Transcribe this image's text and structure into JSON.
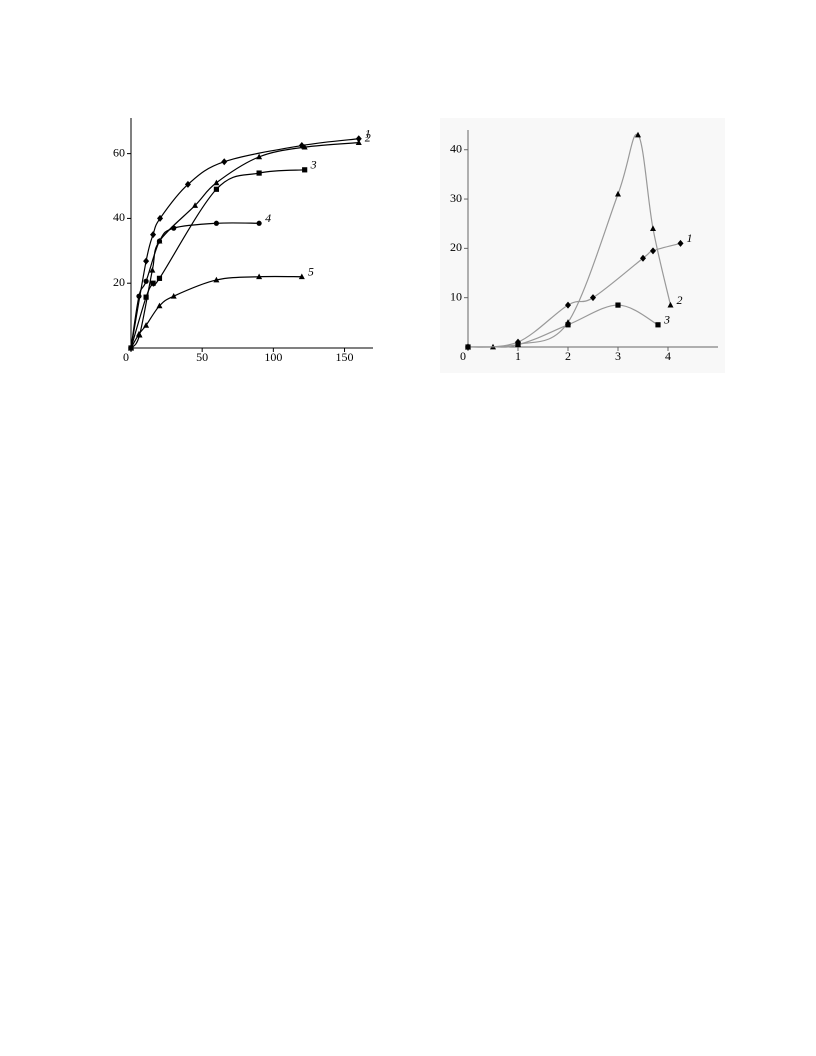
{
  "chart_data": [
    {
      "type": "line",
      "line_color": "#000000",
      "axis_color": "#000000",
      "xlim": [
        0,
        170
      ],
      "ylim": [
        0,
        71
      ],
      "xticks": [
        0,
        50,
        100,
        150
      ],
      "yticks": [
        20,
        40,
        60
      ],
      "series": [
        {
          "name": "1",
          "marker": "diamond",
          "color": "#000000",
          "x": [
            0,
            10.6,
            15.5,
            20.4,
            40,
            65.5,
            120,
            160
          ],
          "values": [
            0,
            26.8,
            35,
            40,
            50.5,
            57.5,
            62.5,
            64.6
          ]
        },
        {
          "name": "2",
          "marker": "triangle",
          "color": "#000000",
          "x": [
            0,
            6,
            15,
            20,
            45,
            60,
            90,
            122,
            160
          ],
          "values": [
            0,
            4,
            24,
            33,
            44,
            51,
            59,
            62,
            63.4
          ]
        },
        {
          "name": "3",
          "marker": "square",
          "color": "#000000",
          "x": [
            0,
            10.6,
            15.5,
            20,
            60,
            90,
            122
          ],
          "values": [
            0,
            15.7,
            20,
            21.5,
            49,
            54,
            55
          ]
        },
        {
          "name": "4",
          "marker": "circle",
          "color": "#000000",
          "x": [
            0,
            5.6,
            10.6,
            20,
            30,
            60,
            90
          ],
          "values": [
            0,
            16,
            20.6,
            33,
            37,
            38.5,
            38.5
          ]
        },
        {
          "name": "5",
          "marker": "triangle",
          "color": "#000000",
          "x": [
            0,
            5.6,
            10.6,
            20,
            30,
            60,
            90,
            120
          ],
          "values": [
            0,
            4.3,
            7,
            13,
            16,
            21,
            22,
            22
          ]
        }
      ]
    },
    {
      "type": "line",
      "line_color": "#999999",
      "axis_color": "#666666",
      "xlim": [
        0,
        5
      ],
      "ylim": [
        0,
        44
      ],
      "xticks": [
        0,
        1,
        2,
        3,
        4
      ],
      "yticks": [
        10,
        20,
        30,
        40
      ],
      "series": [
        {
          "name": "1",
          "marker": "diamond",
          "color": "#000000",
          "x": [
            0,
            1,
            2,
            2.5,
            3.5,
            3.7,
            4.25
          ],
          "values": [
            0,
            1,
            8.5,
            10,
            18,
            19.5,
            21
          ]
        },
        {
          "name": "2",
          "marker": "triangle",
          "color": "#000000",
          "x": [
            0,
            0.5,
            1,
            2,
            3,
            3.4,
            3.7,
            4.05
          ],
          "values": [
            0,
            0,
            0.5,
            5,
            31,
            43,
            24,
            8.5
          ]
        },
        {
          "name": "3",
          "marker": "square",
          "color": "#000000",
          "x": [
            0,
            1,
            2,
            3,
            3.8
          ],
          "values": [
            0,
            0.5,
            4.5,
            8.5,
            4.5
          ]
        }
      ]
    }
  ]
}
